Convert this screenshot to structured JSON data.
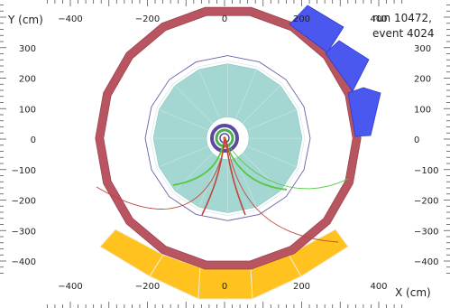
{
  "axes": {
    "x_title": "X (cm)",
    "y_title": "Y (cm)",
    "x_ticks": [
      {
        "v": -400,
        "label": "−400"
      },
      {
        "v": -200,
        "label": "−200"
      },
      {
        "v": 0,
        "label": "0"
      },
      {
        "v": 200,
        "label": "200"
      },
      {
        "v": 400,
        "label": "400"
      }
    ],
    "y_ticks": [
      {
        "v": 300,
        "label": "300"
      },
      {
        "v": 200,
        "label": "200"
      },
      {
        "v": 100,
        "label": "100"
      },
      {
        "v": 0,
        "label": "0"
      },
      {
        "v": -100,
        "label": "−100"
      },
      {
        "v": -200,
        "label": "−200"
      },
      {
        "v": -300,
        "label": "−300"
      },
      {
        "v": -400,
        "label": "−400"
      }
    ]
  },
  "info": {
    "run": "run 10472,",
    "event": "event 4024"
  },
  "colors": {
    "magnet": "#b85561",
    "muon_chamber": "#ffc21f",
    "calorimeter": "#a4d6d2",
    "tower": "#4a58f0",
    "inner_purple": "#5a4aa0",
    "inner_green": "#4caf50",
    "track_green": "#55c845",
    "track_red": "#c0453a"
  }
}
